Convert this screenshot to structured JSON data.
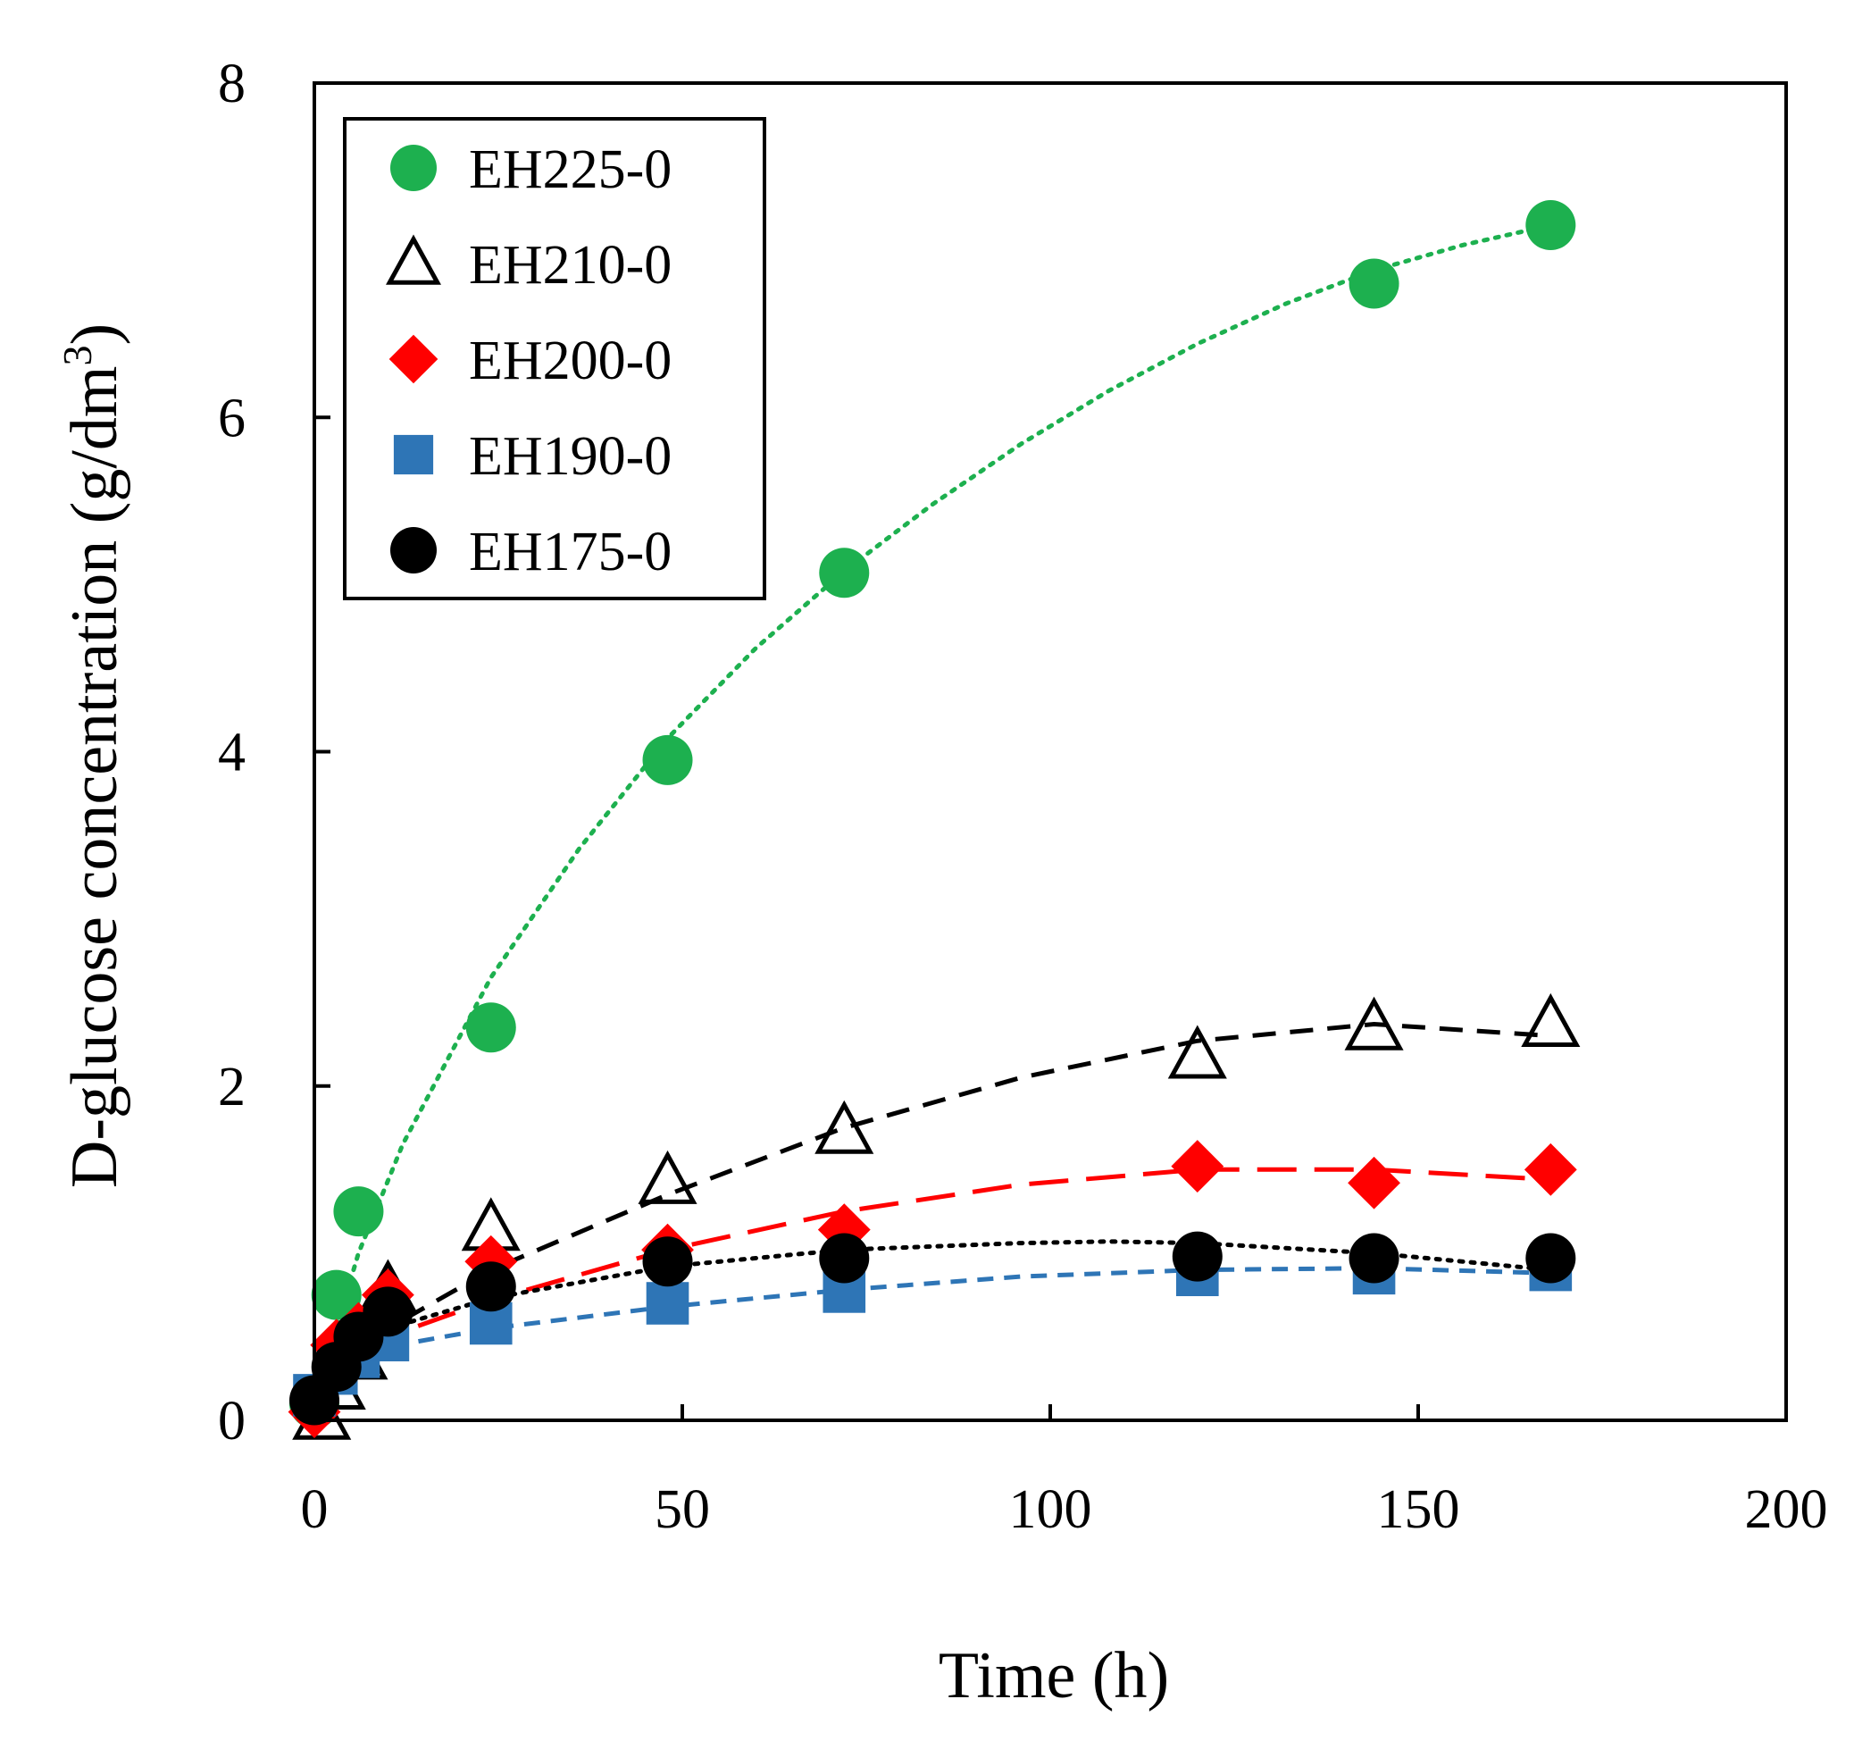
{
  "chart_data": {
    "type": "scatter",
    "title": "",
    "xlabel": "Time (h)",
    "ylabel": "D-glucose concentration (g/dm",
    "ylabel_sup": "3",
    "ylabel_end": ")",
    "xlim": [
      0,
      200
    ],
    "ylim": [
      0,
      8
    ],
    "xticks": [
      0,
      50,
      100,
      150,
      200
    ],
    "yticks": [
      0,
      2,
      4,
      6,
      8
    ],
    "xtick_labels": [
      "0",
      "50",
      "100",
      "150",
      "200"
    ],
    "ytick_labels": [
      "0",
      "2",
      "4",
      "6",
      "8"
    ],
    "grid": false,
    "legend_position": "top-left",
    "series": [
      {
        "name": "EH225-0",
        "marker": "circle",
        "color": "#1DB04F",
        "line_style": "dotted",
        "x": [
          0,
          3,
          6,
          24,
          48,
          72,
          144,
          168
        ],
        "y": [
          0.1,
          0.75,
          1.25,
          2.35,
          3.95,
          5.07,
          6.8,
          7.15
        ],
        "fit_x": [
          0,
          6,
          12,
          24,
          36,
          48,
          60,
          72,
          84,
          96,
          108,
          120,
          132,
          144,
          156,
          168
        ],
        "fit_y": [
          0.1,
          1.0,
          1.65,
          2.65,
          3.42,
          4.08,
          4.62,
          5.08,
          5.48,
          5.84,
          6.16,
          6.44,
          6.68,
          6.88,
          7.03,
          7.15
        ]
      },
      {
        "name": "EH210-0",
        "marker": "triangle-open",
        "color": "#000000",
        "line_style": "dashed",
        "x": [
          1,
          3,
          6,
          10,
          24,
          48,
          72,
          120,
          144,
          168
        ],
        "y": [
          0.02,
          0.2,
          0.38,
          0.78,
          1.15,
          1.43,
          1.73,
          2.18,
          2.35,
          2.37
        ],
        "fit_x": [
          0,
          10,
          24,
          48,
          72,
          96,
          120,
          144,
          168
        ],
        "fit_y": [
          0.2,
          0.55,
          0.9,
          1.35,
          1.75,
          2.05,
          2.27,
          2.37,
          2.3
        ]
      },
      {
        "name": "EH200-0",
        "marker": "diamond",
        "color": "#FF0000",
        "line_style": "long-dashed",
        "x": [
          0,
          3,
          6,
          10,
          24,
          48,
          72,
          120,
          144,
          168
        ],
        "y": [
          0.05,
          0.45,
          0.55,
          0.75,
          0.95,
          1.02,
          1.14,
          1.52,
          1.42,
          1.5
        ],
        "fit_x": [
          0,
          10,
          24,
          48,
          72,
          96,
          120,
          144,
          168
        ],
        "fit_y": [
          0.28,
          0.5,
          0.72,
          1.02,
          1.25,
          1.41,
          1.5,
          1.5,
          1.44
        ]
      },
      {
        "name": "EH190-0",
        "marker": "square",
        "color": "#2E75B6",
        "line_style": "short-dashed",
        "x": [
          0,
          3,
          6,
          10,
          24,
          48,
          72,
          120,
          144,
          168
        ],
        "y": [
          0.15,
          0.28,
          0.38,
          0.48,
          0.58,
          0.7,
          0.77,
          0.87,
          0.88,
          0.9
        ],
        "fit_x": [
          0,
          10,
          24,
          48,
          72,
          96,
          120,
          144,
          168
        ],
        "fit_y": [
          0.32,
          0.44,
          0.55,
          0.68,
          0.78,
          0.86,
          0.9,
          0.91,
          0.88
        ]
      },
      {
        "name": "EH175-0",
        "marker": "circle",
        "color": "#000000",
        "line_style": "dotted",
        "x": [
          0,
          3,
          6,
          10,
          24,
          48,
          72,
          120,
          144,
          168
        ],
        "y": [
          0.12,
          0.32,
          0.5,
          0.65,
          0.8,
          0.95,
          0.97,
          0.98,
          0.97,
          0.97
        ],
        "fit_x": [
          0,
          10,
          24,
          48,
          72,
          96,
          108,
          120,
          144,
          168
        ],
        "fit_y": [
          0.35,
          0.55,
          0.73,
          0.92,
          1.02,
          1.06,
          1.07,
          1.06,
          1.0,
          0.9
        ]
      }
    ]
  }
}
